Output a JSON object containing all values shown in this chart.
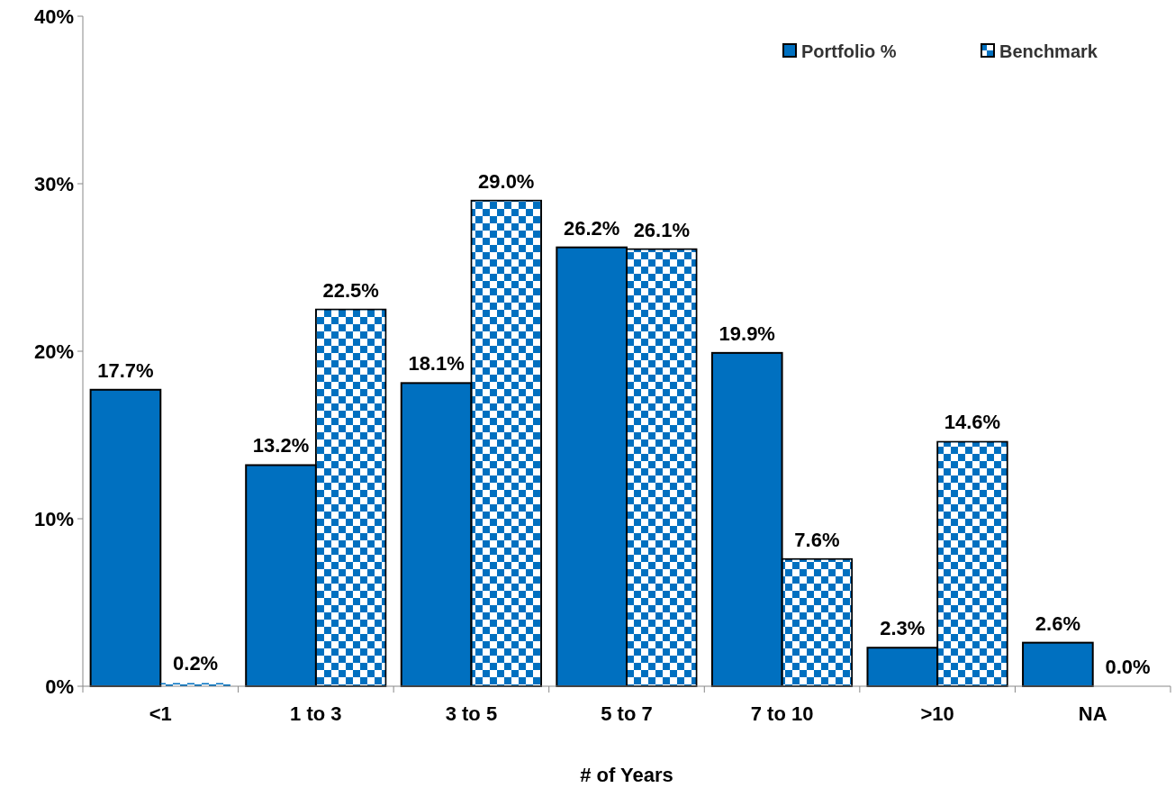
{
  "chart_data": {
    "type": "bar",
    "xlabel": "# of Years",
    "categories": [
      "<1",
      "1 to 3",
      "3 to 5",
      "5 to 7",
      "7 to 10",
      ">10",
      "NA"
    ],
    "series": [
      {
        "name": "Portfolio %",
        "color": "#0070c0",
        "values": [
          17.7,
          13.2,
          18.1,
          26.2,
          19.9,
          2.3,
          2.6
        ]
      },
      {
        "name": "Benchmark",
        "color": "#0070c0",
        "values": [
          0.2,
          22.5,
          29.0,
          26.1,
          7.6,
          14.6,
          0.0
        ]
      }
    ],
    "value_labels": [
      [
        "17.7%",
        "13.2%",
        "18.1%",
        "26.2%",
        "19.9%",
        "2.3%",
        "2.6%"
      ],
      [
        "0.2%",
        "22.5%",
        "29.0%",
        "26.1%",
        "7.6%",
        "14.6%",
        "0.0%"
      ]
    ],
    "ylim": [
      0,
      40
    ],
    "yticks": [
      {
        "value": 0,
        "label": "0%"
      },
      {
        "value": 10,
        "label": "10%"
      },
      {
        "value": 20,
        "label": "20%"
      },
      {
        "value": 30,
        "label": "30%"
      },
      {
        "value": 40,
        "label": "40%"
      }
    ],
    "legend": "top right"
  }
}
